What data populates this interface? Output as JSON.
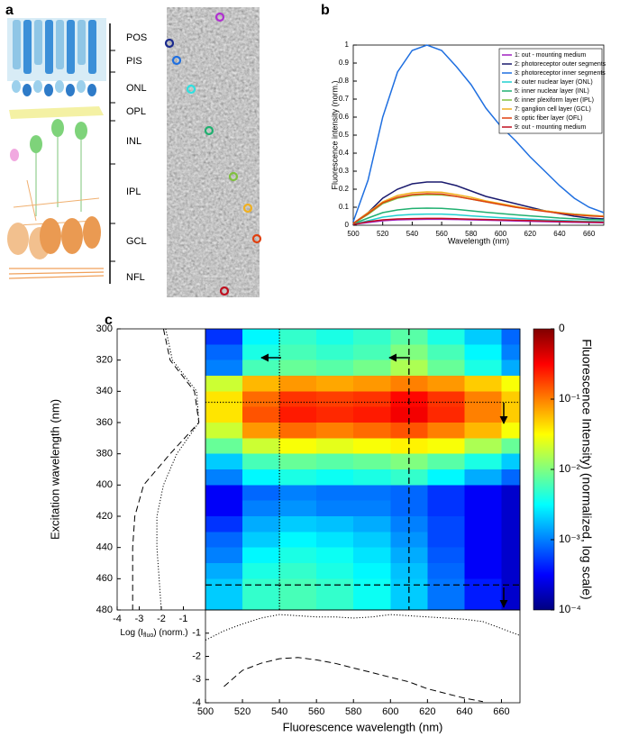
{
  "panel_labels": [
    "a",
    "b",
    "c"
  ],
  "retina_diagram": {
    "layers": [
      "POS",
      "PIS",
      "ONL",
      "OPL",
      "INL",
      "IPL",
      "GCL",
      "NFL"
    ]
  },
  "chart_data": [
    {
      "type": "line",
      "xlabel": "Wavelength (nm)",
      "ylabel": "Fluorescence intensity (norm.)",
      "x": [
        500,
        510,
        520,
        530,
        540,
        550,
        560,
        570,
        580,
        590,
        600,
        610,
        620,
        630,
        640,
        650,
        660,
        670
      ],
      "xlim": [
        500,
        670
      ],
      "xticks": [
        500,
        520,
        540,
        560,
        580,
        600,
        620,
        640,
        660
      ],
      "ylim": [
        0,
        1
      ],
      "yticks": [
        0,
        0.1,
        0.2,
        0.3,
        0.4,
        0.5,
        0.6,
        0.7,
        0.8,
        0.9,
        1
      ],
      "legend": "upper right",
      "series": [
        {
          "name": "1: out - mounting medium",
          "color": "#a020c0",
          "values": [
            0.005,
            0.015,
            0.025,
            0.03,
            0.032,
            0.033,
            0.033,
            0.032,
            0.03,
            0.028,
            0.026,
            0.024,
            0.022,
            0.02,
            0.018,
            0.016,
            0.015,
            0.014
          ]
        },
        {
          "name": "2: photoreceptor outer segments",
          "color": "#1a1a6e",
          "values": [
            0.01,
            0.07,
            0.15,
            0.2,
            0.23,
            0.24,
            0.24,
            0.22,
            0.19,
            0.16,
            0.14,
            0.12,
            0.1,
            0.08,
            0.065,
            0.05,
            0.04,
            0.035
          ]
        },
        {
          "name": "3: photoreceptor inner segments",
          "color": "#1f6fe0",
          "values": [
            0.02,
            0.25,
            0.6,
            0.85,
            0.97,
            1.0,
            0.97,
            0.88,
            0.78,
            0.65,
            0.55,
            0.47,
            0.38,
            0.3,
            0.22,
            0.15,
            0.1,
            0.07
          ]
        },
        {
          "name": "4: outer nuclear layer (ONL)",
          "color": "#20d0d0",
          "values": [
            0.005,
            0.025,
            0.045,
            0.055,
            0.06,
            0.062,
            0.062,
            0.058,
            0.052,
            0.047,
            0.042,
            0.038,
            0.034,
            0.03,
            0.027,
            0.024,
            0.022,
            0.02
          ]
        },
        {
          "name": "5: inner nuclear layer (INL)",
          "color": "#20b070",
          "values": [
            0.008,
            0.04,
            0.07,
            0.085,
            0.093,
            0.095,
            0.094,
            0.088,
            0.08,
            0.072,
            0.065,
            0.058,
            0.052,
            0.046,
            0.04,
            0.036,
            0.032,
            0.03
          ]
        },
        {
          "name": "6: inner plexiform layer (IPL)",
          "color": "#80c040",
          "values": [
            0.01,
            0.06,
            0.12,
            0.15,
            0.165,
            0.17,
            0.168,
            0.16,
            0.145,
            0.13,
            0.115,
            0.1,
            0.09,
            0.08,
            0.07,
            0.062,
            0.056,
            0.05
          ]
        },
        {
          "name": "7: ganglion cell layer (GCL)",
          "color": "#f0b020",
          "values": [
            0.01,
            0.07,
            0.13,
            0.165,
            0.18,
            0.185,
            0.183,
            0.17,
            0.155,
            0.135,
            0.12,
            0.105,
            0.09,
            0.08,
            0.07,
            0.06,
            0.055,
            0.05
          ]
        },
        {
          "name": "8: optic fiber layer (OFL)",
          "color": "#e04010",
          "values": [
            0.01,
            0.065,
            0.125,
            0.155,
            0.17,
            0.175,
            0.173,
            0.16,
            0.145,
            0.13,
            0.115,
            0.1,
            0.088,
            0.077,
            0.067,
            0.058,
            0.052,
            0.048
          ]
        },
        {
          "name": "9: out - mounting medium",
          "color": "#c01020",
          "values": [
            0.004,
            0.02,
            0.03,
            0.035,
            0.037,
            0.038,
            0.038,
            0.036,
            0.034,
            0.032,
            0.03,
            0.028,
            0.026,
            0.024,
            0.022,
            0.02,
            0.018,
            0.017
          ]
        }
      ]
    },
    {
      "type": "heatmap",
      "colormap": "jet",
      "xlim": [
        500,
        670
      ],
      "ylim": [
        300,
        480
      ],
      "y_reversed": true,
      "xbins": [
        500,
        520,
        540,
        560,
        580,
        600,
        620,
        640,
        660,
        670
      ],
      "ybins": [
        300,
        310,
        320,
        330,
        340,
        350,
        360,
        370,
        380,
        390,
        400,
        410,
        420,
        430,
        440,
        450,
        460,
        470,
        480
      ],
      "z": [
        [
          0.0005,
          0.003,
          0.005,
          0.004,
          0.005,
          0.007,
          0.004,
          0.002,
          0.0008
        ],
        [
          0.0008,
          0.004,
          0.006,
          0.005,
          0.006,
          0.01,
          0.006,
          0.003,
          0.001
        ],
        [
          0.001,
          0.006,
          0.008,
          0.007,
          0.009,
          0.015,
          0.008,
          0.004,
          0.0015
        ],
        [
          0.02,
          0.06,
          0.08,
          0.07,
          0.08,
          0.1,
          0.08,
          0.05,
          0.03
        ],
        [
          0.04,
          0.12,
          0.2,
          0.18,
          0.2,
          0.3,
          0.2,
          0.1,
          0.05
        ],
        [
          0.04,
          0.15,
          0.25,
          0.22,
          0.25,
          0.35,
          0.22,
          0.1,
          0.05
        ],
        [
          0.02,
          0.08,
          0.12,
          0.1,
          0.12,
          0.15,
          0.1,
          0.06,
          0.03
        ],
        [
          0.008,
          0.02,
          0.03,
          0.025,
          0.03,
          0.035,
          0.03,
          0.015,
          0.008
        ],
        [
          0.002,
          0.006,
          0.008,
          0.007,
          0.008,
          0.01,
          0.007,
          0.004,
          0.002
        ],
        [
          0.001,
          0.003,
          0.004,
          0.0035,
          0.004,
          0.005,
          0.003,
          0.0015,
          0.0008
        ],
        [
          0.0003,
          0.0008,
          0.001,
          0.0009,
          0.0009,
          0.0008,
          0.0005,
          0.0003,
          0.0002
        ],
        [
          0.0003,
          0.001,
          0.0012,
          0.001,
          0.001,
          0.0008,
          0.0005,
          0.0003,
          0.0002
        ],
        [
          0.0005,
          0.0015,
          0.002,
          0.0018,
          0.0015,
          0.001,
          0.0006,
          0.0003,
          0.0002
        ],
        [
          0.0008,
          0.002,
          0.003,
          0.0025,
          0.002,
          0.0012,
          0.0006,
          0.0003,
          0.0002
        ],
        [
          0.001,
          0.003,
          0.004,
          0.0035,
          0.0025,
          0.0015,
          0.0007,
          0.0003,
          0.0002
        ],
        [
          0.0015,
          0.004,
          0.005,
          0.004,
          0.003,
          0.0018,
          0.0008,
          0.0003,
          0.0002
        ],
        [
          0.002,
          0.005,
          0.006,
          0.005,
          0.0035,
          0.002,
          0.0009,
          0.0004,
          0.0002
        ],
        [
          0.002,
          0.005,
          0.006,
          0.005,
          0.0035,
          0.002,
          0.0009,
          0.0004,
          0.0002
        ]
      ],
      "reference_lines": [
        {
          "x": 540,
          "style": "dotted"
        },
        {
          "x": 610,
          "style": "dashed"
        },
        {
          "y": 347,
          "style": "dotted"
        },
        {
          "y": 464,
          "style": "dashed"
        }
      ],
      "colorbar": {
        "label": "Fluorescence Intensity) (normalized, log scale)",
        "lim": [
          0.0001,
          1
        ],
        "log": true,
        "ticks": [
          {
            "value": 1,
            "label": "0"
          },
          {
            "value": 0.1,
            "label": "10⁻¹"
          },
          {
            "value": 0.01,
            "label": "10⁻²"
          },
          {
            "value": 0.001,
            "label": "10⁻³"
          },
          {
            "value": 0.0001,
            "label": "10⁻⁴"
          }
        ]
      }
    },
    {
      "type": "line",
      "orientation": "vertical",
      "ylabel": "Excitation wavelength (nm)",
      "xlabel": [
        "Log (I",
        "fluo",
        ") (norm.)"
      ],
      "xlim": [
        -4,
        0
      ],
      "xticks": [
        -4,
        -3,
        -2,
        -1
      ],
      "ylim": [
        300,
        480
      ],
      "y_reversed": true,
      "yticks": [
        300,
        320,
        340,
        360,
        380,
        400,
        420,
        440,
        460,
        480
      ],
      "y": [
        300,
        320,
        340,
        360,
        380,
        400,
        420,
        440,
        460,
        480
      ],
      "series": [
        {
          "color": "#000000",
          "style": "dotted",
          "values": [
            -1.8,
            -1.5,
            -0.4,
            -0.3,
            -1.3,
            -1.9,
            -2.2,
            -2.2,
            -2.1,
            -2.0
          ]
        },
        {
          "color": "#000000",
          "style": "dashed",
          "values": [
            -1.9,
            -1.6,
            -0.5,
            -0.3,
            -1.6,
            -2.8,
            -3.2,
            -3.3,
            -3.3,
            -3.3
          ]
        }
      ]
    },
    {
      "type": "line",
      "xlabel": "Fluorescence wavelength (nm)",
      "x": [
        500,
        510,
        520,
        530,
        540,
        550,
        560,
        570,
        580,
        590,
        600,
        610,
        620,
        630,
        640,
        650,
        660,
        670
      ],
      "xlim": [
        500,
        670
      ],
      "xticks": [
        500,
        520,
        540,
        560,
        580,
        600,
        620,
        640,
        660
      ],
      "ylim": [
        -4,
        0
      ],
      "yticks": [
        -4,
        -3,
        -2,
        -1
      ],
      "series": [
        {
          "color": "#000000",
          "style": "dotted",
          "values": [
            -1.3,
            -0.9,
            -0.6,
            -0.35,
            -0.2,
            -0.25,
            -0.3,
            -0.3,
            -0.35,
            -0.3,
            -0.2,
            -0.25,
            -0.3,
            -0.35,
            -0.4,
            -0.5,
            -0.8,
            -1.1
          ]
        },
        {
          "color": "#000000",
          "style": "dashed",
          "values": [
            null,
            -3.3,
            -2.6,
            -2.3,
            -2.1,
            -2.05,
            -2.15,
            -2.3,
            -2.5,
            -2.7,
            -2.9,
            -3.1,
            -3.4,
            -3.6,
            -3.8,
            -3.95,
            null,
            null
          ]
        }
      ]
    }
  ]
}
